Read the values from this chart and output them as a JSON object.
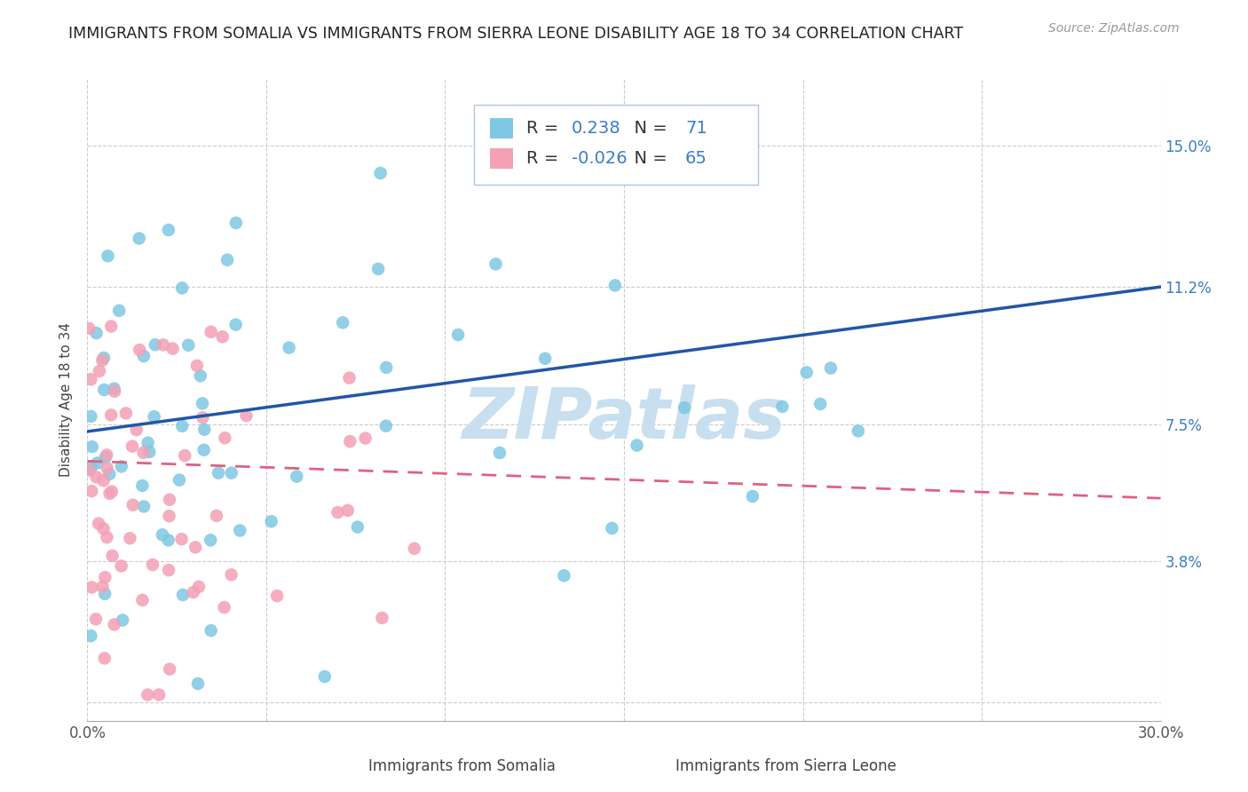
{
  "title": "IMMIGRANTS FROM SOMALIA VS IMMIGRANTS FROM SIERRA LEONE DISABILITY AGE 18 TO 34 CORRELATION CHART",
  "source": "Source: ZipAtlas.com",
  "xlabel_somalia": "Immigrants from Somalia",
  "xlabel_sierra": "Immigrants from Sierra Leone",
  "ylabel": "Disability Age 18 to 34",
  "xlim": [
    0.0,
    0.3
  ],
  "ylim": [
    -0.005,
    0.168
  ],
  "xticks": [
    0.0,
    0.05,
    0.1,
    0.15,
    0.2,
    0.25,
    0.3
  ],
  "xtick_labels": [
    "0.0%",
    "",
    "",
    "",
    "",
    "",
    "30.0%"
  ],
  "yticks": [
    0.0,
    0.038,
    0.075,
    0.112,
    0.15
  ],
  "ytick_labels": [
    "",
    "3.8%",
    "7.5%",
    "11.2%",
    "15.0%"
  ],
  "somalia_color": "#7ec8e3",
  "sierra_color": "#f4a0b5",
  "somalia_line_color": "#2255aa",
  "sierra_line_color": "#e06080",
  "R_somalia": 0.238,
  "N_somalia": 71,
  "R_sierra": -0.026,
  "N_sierra": 65,
  "grid_color": "#cccccc",
  "watermark": "ZIPatlas",
  "watermark_color": "#c8dff0",
  "background_color": "#ffffff",
  "title_fontsize": 12.5,
  "axis_label_fontsize": 11,
  "tick_fontsize": 12,
  "legend_fontsize": 14,
  "source_fontsize": 10,
  "somalia_line_y0": 0.073,
  "somalia_line_y1": 0.112,
  "sierra_line_y0": 0.065,
  "sierra_line_y1": 0.055
}
